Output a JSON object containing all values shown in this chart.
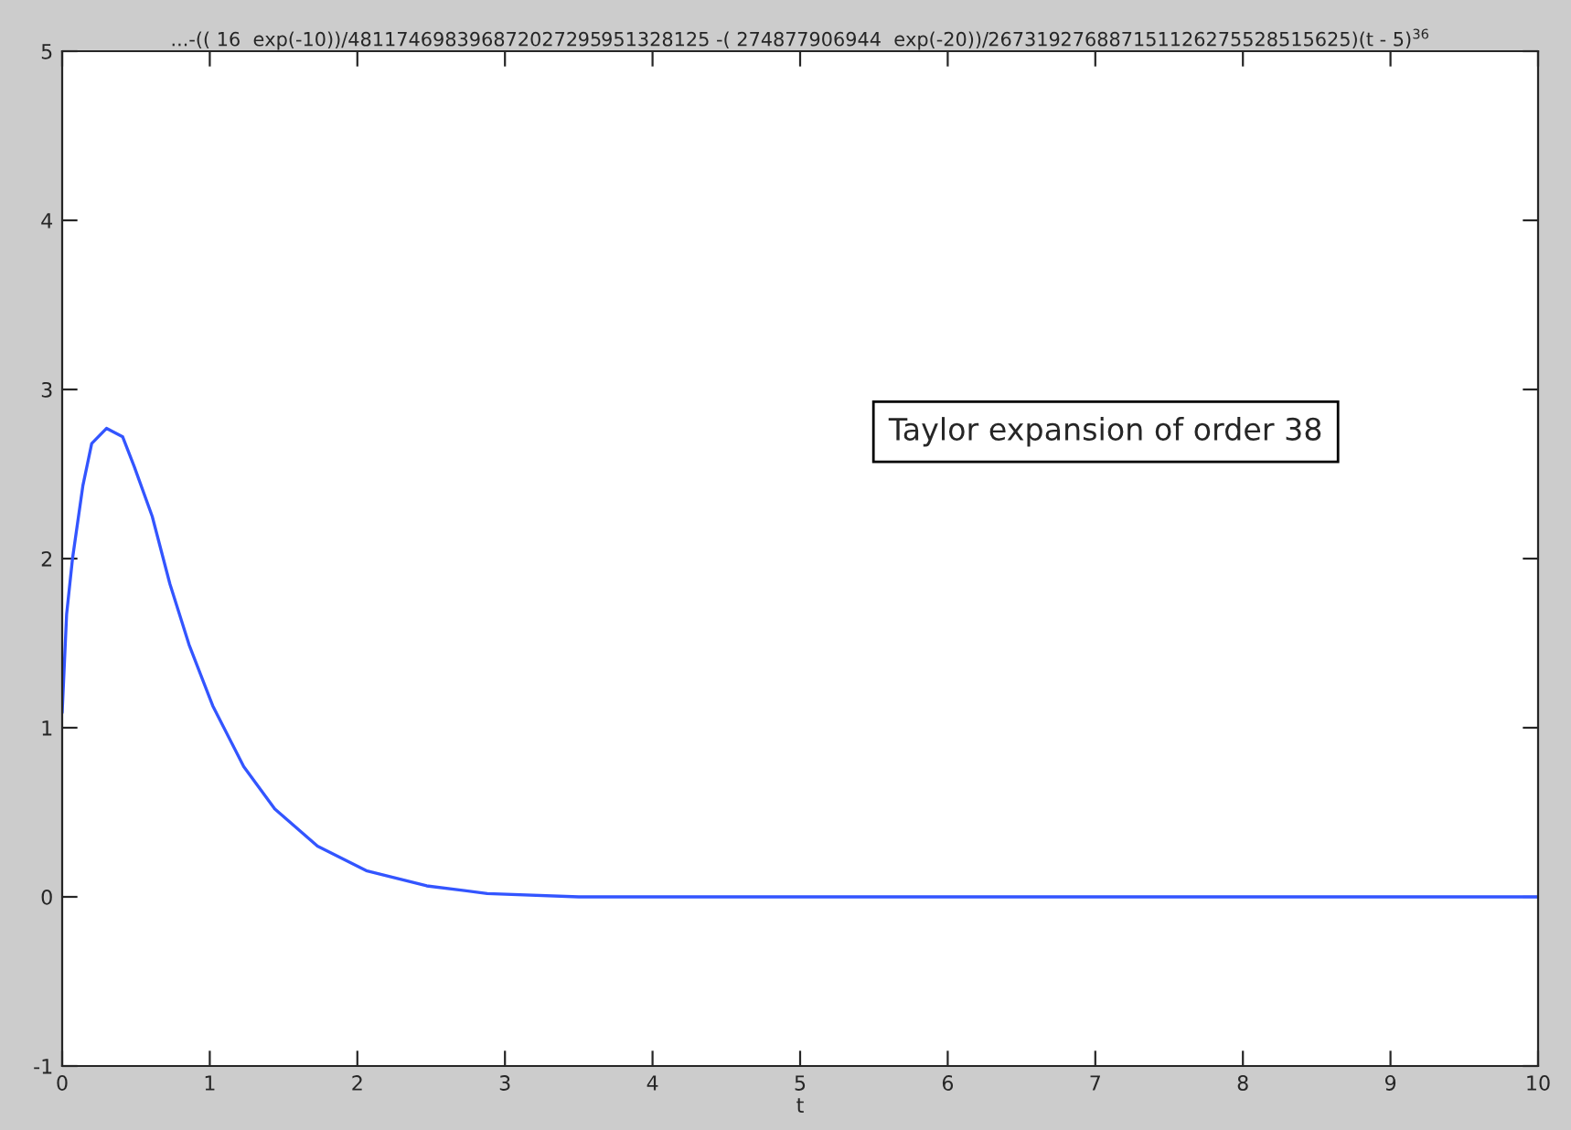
{
  "chart_data": {
    "type": "line",
    "title": "...-(( 16  exp(-10))/481174698396872027295951328125 -( 274877906944  exp(-20))/267319276887151126275528515625)(t - 5)$^{36}$",
    "xlabel": "t",
    "annotations": [
      "Taylor expansion of order 38"
    ],
    "x": [
      0,
      0.03,
      0.07,
      0.14,
      0.2,
      0.3,
      0.41,
      0.49,
      0.61,
      0.73,
      0.86,
      1.02,
      1.23,
      1.44,
      1.73,
      2.06,
      2.47,
      2.88,
      3.5,
      4,
      5,
      6,
      7,
      8,
      9,
      10
    ],
    "series": [
      {
        "color": "#3355ff",
        "values": [
          1.09,
          1.67,
          2.0,
          2.43,
          2.68,
          2.77,
          2.72,
          2.54,
          2.25,
          1.85,
          1.49,
          1.13,
          0.77,
          0.52,
          0.3,
          0.155,
          0.065,
          0.02,
          0,
          0,
          0,
          0,
          0,
          0,
          0,
          0
        ]
      }
    ],
    "xlim": [
      0,
      10
    ],
    "ylim": [
      -1,
      5
    ],
    "xticks": [
      0,
      1,
      2,
      3,
      4,
      5,
      6,
      7,
      8,
      9,
      10
    ],
    "yticks": [
      -1,
      0,
      1,
      2,
      3,
      4,
      5
    ],
    "grid": false,
    "legend": false
  }
}
